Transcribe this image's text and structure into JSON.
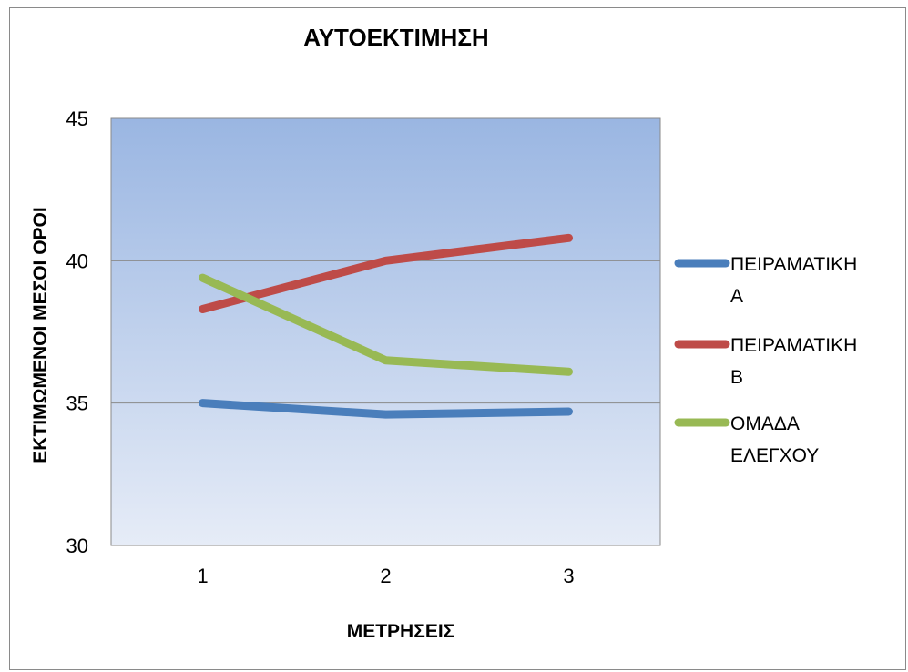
{
  "chart_data": {
    "type": "line",
    "title": "ΑΥΤΟΕΚΤΙΜΗΣΗ",
    "xlabel": "ΜΕΤΡΗΣΕΙΣ",
    "ylabel": "ΕΚΤΙΜΩΜΕΝΟΙ ΜΕΣΟΙ ΟΡΟΙ",
    "categories": [
      "1",
      "2",
      "3"
    ],
    "ylim": [
      30,
      45
    ],
    "yticks": [
      "30",
      "35",
      "40",
      "45"
    ],
    "grid": true,
    "legend_position": "right",
    "series": [
      {
        "name": "ΠΕΙΡΑΜΑΤΙΚΗ Α",
        "name_lines": [
          "ΠΕΙΡΑΜΑΤΙΚΗ",
          "Α"
        ],
        "color": "#4a7ebb",
        "values": [
          35.0,
          34.6,
          34.7
        ]
      },
      {
        "name": "ΠΕΙΡΑΜΑΤΙΚΗ Β",
        "name_lines": [
          "ΠΕΙΡΑΜΑΤΙΚΗ",
          "Β"
        ],
        "color": "#be4b48",
        "values": [
          38.3,
          40.0,
          40.8
        ]
      },
      {
        "name": "ΟΜΑΔΑ ΕΛΕΓΧΟΥ",
        "name_lines": [
          "ΟΜΑΔΑ",
          "ΕΛΕΓΧΟΥ"
        ],
        "color": "#98b954",
        "values": [
          39.4,
          36.5,
          36.1
        ]
      }
    ]
  }
}
